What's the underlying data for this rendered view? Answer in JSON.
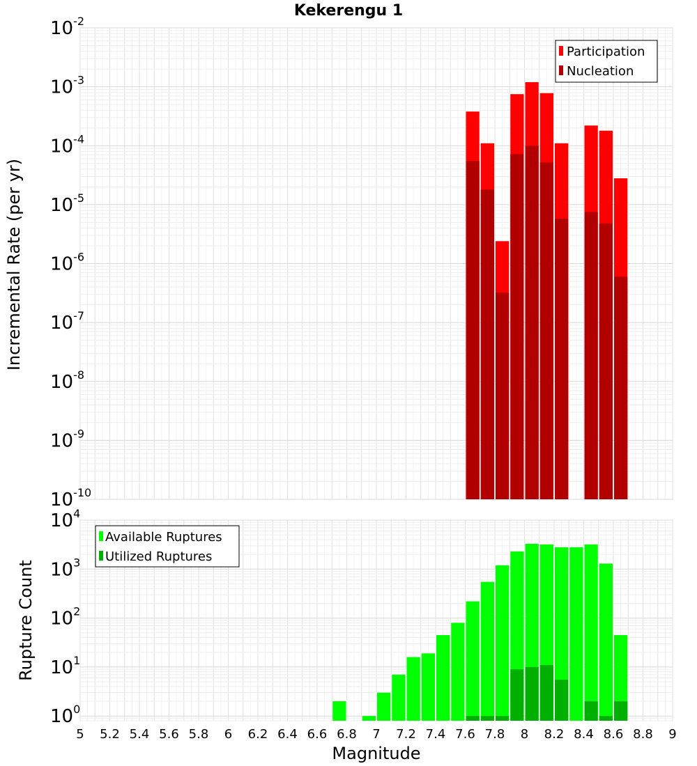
{
  "chart_data": [
    {
      "type": "bar",
      "title": "Kekerengu 1",
      "xlabel": "",
      "ylabel": "Incremental Rate (per yr)",
      "yscale": "log",
      "xlim": [
        5,
        9
      ],
      "ylim": [
        1e-10,
        0.01
      ],
      "y_ticks": [
        "10^-10",
        "10^-9",
        "10^-8",
        "10^-7",
        "10^-6",
        "10^-5",
        "10^-4",
        "10^-3",
        "10^-2"
      ],
      "grid": true,
      "legend_position": "top-right",
      "x": [
        7.65,
        7.75,
        7.85,
        7.95,
        8.05,
        8.15,
        8.25,
        8.35,
        8.45,
        8.55,
        8.65
      ],
      "series": [
        {
          "name": "Participation",
          "color": "#ff0000",
          "values": [
            0.00038,
            0.00011,
            2.4e-06,
            0.00075,
            0.0012,
            0.00078,
            0.00011,
            null,
            0.00022,
            0.00018,
            2.8e-05
          ]
        },
        {
          "name": "Nucleation",
          "color": "#b20000",
          "values": [
            5.5e-05,
            1.8e-05,
            3.2e-07,
            7.2e-05,
            0.0001,
            5.2e-05,
            5.8e-06,
            null,
            7.5e-06,
            4.8e-06,
            6e-07
          ]
        }
      ]
    },
    {
      "type": "bar",
      "title": "",
      "xlabel": "Magnitude",
      "ylabel": "Rupture Count",
      "yscale": "log",
      "xlim": [
        5,
        9
      ],
      "ylim": [
        0.8,
        10000
      ],
      "y_ticks": [
        "10^0",
        "10^1",
        "10^2",
        "10^3",
        "10^4"
      ],
      "x_ticks": [
        "5",
        "5.2",
        "5.4",
        "5.6",
        "5.8",
        "6",
        "6.2",
        "6.4",
        "6.6",
        "6.8",
        "7",
        "7.2",
        "7.4",
        "7.6",
        "7.8",
        "8",
        "8.2",
        "8.4",
        "8.6",
        "8.8",
        "9"
      ],
      "grid": true,
      "legend_position": "top-left",
      "x": [
        6.75,
        6.85,
        6.95,
        7.05,
        7.15,
        7.25,
        7.35,
        7.45,
        7.55,
        7.65,
        7.75,
        7.85,
        7.95,
        8.05,
        8.15,
        8.25,
        8.35,
        8.45,
        8.55,
        8.65
      ],
      "series": [
        {
          "name": "Available Ruptures",
          "color": "#00ff00",
          "values": [
            2,
            null,
            1,
            3,
            7,
            16,
            19,
            45,
            80,
            220,
            550,
            1200,
            2300,
            3300,
            3200,
            2800,
            2800,
            3200,
            1300,
            45
          ]
        },
        {
          "name": "Utilized Ruptures",
          "color": "#00b000",
          "values": [
            null,
            null,
            null,
            null,
            null,
            null,
            null,
            null,
            null,
            1,
            1,
            1,
            9,
            10,
            11,
            5.5,
            null,
            2,
            1,
            2
          ]
        }
      ]
    }
  ]
}
